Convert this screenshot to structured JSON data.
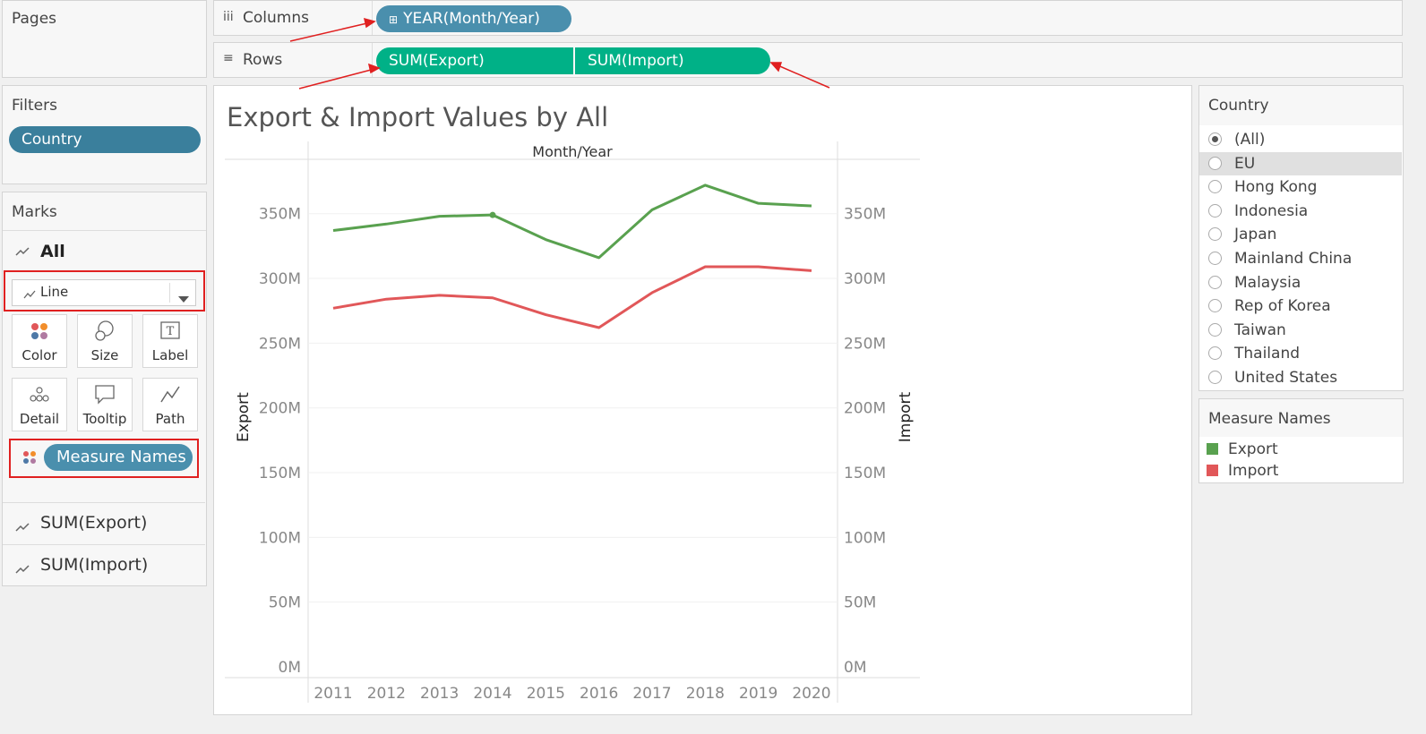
{
  "shelves": {
    "pages_label": "Pages",
    "columns_label": "Columns",
    "columns_icon": "iii",
    "rows_label": "Rows",
    "rows_icon": "≡",
    "columns_pill": "YEAR(Month/Year)",
    "columns_pill_icon": "⊞",
    "rows_pills": [
      "SUM(Export)",
      "SUM(Import)"
    ]
  },
  "filters": {
    "title": "Filters",
    "pill": "Country"
  },
  "marks": {
    "title": "Marks",
    "all_label": "All",
    "type_label": "Line",
    "buttons": [
      "Color",
      "Size",
      "Label",
      "Detail",
      "Tooltip",
      "Path"
    ],
    "color_pill": "Measure Names",
    "sub_items": [
      "SUM(Export)",
      "SUM(Import)"
    ]
  },
  "country_filter": {
    "title": "Country",
    "options": [
      "(All)",
      "EU",
      "Hong Kong",
      "Indonesia",
      "Japan",
      "Mainland China",
      "Malaysia",
      "Rep of Korea",
      "Taiwan",
      "Thailand",
      "United States"
    ],
    "selected": "(All)",
    "hovered": "EU"
  },
  "legend": {
    "title": "Measure Names",
    "items": [
      {
        "name": "Export",
        "color": "#59a14f"
      },
      {
        "name": "Import",
        "color": "#e15759"
      }
    ]
  },
  "chart_data": {
    "type": "line",
    "title": "Export & Import Values by All",
    "xlabel": "Month/Year",
    "ylabel_left": "Export",
    "ylabel_right": "Import",
    "categories": [
      "2011",
      "2012",
      "2013",
      "2014",
      "2015",
      "2016",
      "2017",
      "2018",
      "2019",
      "2020"
    ],
    "ylim": [
      0,
      400
    ],
    "yticks": [
      "0M",
      "50M",
      "100M",
      "150M",
      "200M",
      "250M",
      "300M",
      "350M"
    ],
    "series": [
      {
        "name": "Export",
        "color": "#59a14f",
        "values": [
          337,
          342,
          348,
          349,
          330,
          316,
          353,
          372,
          358,
          356
        ]
      },
      {
        "name": "Import",
        "color": "#e15759",
        "values": [
          277,
          284,
          287,
          285,
          272,
          262,
          289,
          309,
          309,
          306
        ]
      }
    ]
  }
}
